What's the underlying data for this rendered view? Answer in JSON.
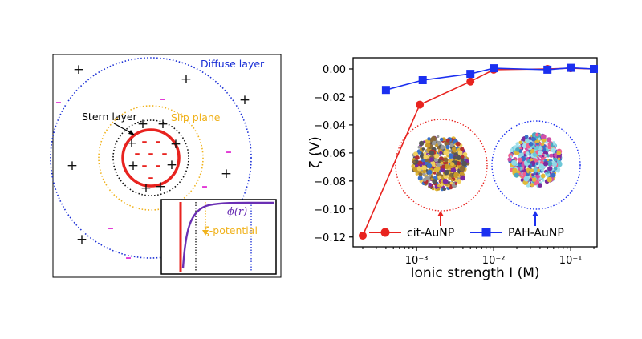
{
  "colors": {
    "frame": "#000000",
    "diffuse": "#1a2fd6",
    "stern": "#111111",
    "slip": "#f0b21c",
    "particle": "#e8231f",
    "cation": "#111111",
    "anion": "#e23ad6",
    "potential": "#6a2fb4",
    "cit": "#e8231f",
    "pah": "#1b2ff0"
  },
  "left_panel": {
    "diffuse_label": "Diffuse layer",
    "stern_label": "Stern layer",
    "slip_label": "Slip plane",
    "zeta_label": "ζ-potential",
    "phi_label": "ϕ(r)",
    "plus_glyph": "+",
    "minus_glyph": "–"
  },
  "chart_data": {
    "type": "line",
    "x_scale": "log",
    "xlim": [
      0.00015,
      0.22
    ],
    "ylim": [
      -0.127,
      0.008
    ],
    "xlabel": "Ionic strength I (M)",
    "ylabel": "ζ (V)",
    "x_ticks": [
      {
        "value": 0.001,
        "label": "10⁻³"
      },
      {
        "value": 0.01,
        "label": "10⁻²"
      },
      {
        "value": 0.1,
        "label": "10⁻¹"
      }
    ],
    "y_ticks": [
      0.0,
      -0.02,
      -0.04,
      -0.06,
      -0.08,
      -0.1,
      -0.12
    ],
    "y_tick_labels": [
      "0.00",
      "−0.02",
      "−0.04",
      "−0.06",
      "−0.08",
      "−0.10",
      "−0.12"
    ],
    "series": [
      {
        "name": "cit-AuNP",
        "marker": "circle",
        "color": "#e8231f",
        "x": [
          0.0002,
          0.0011,
          0.005,
          0.01,
          0.05,
          0.1,
          0.2
        ],
        "y": [
          -0.119,
          -0.0255,
          -0.009,
          -0.0005,
          0.0,
          0.0005,
          0.0
        ]
      },
      {
        "name": "PAH-AuNP",
        "marker": "square",
        "color": "#1b2ff0",
        "x": [
          0.0004,
          0.0012,
          0.005,
          0.01,
          0.05,
          0.1,
          0.2
        ],
        "y": [
          -0.015,
          -0.008,
          -0.0035,
          0.0005,
          -0.0005,
          0.0008,
          0.0
        ]
      }
    ],
    "legend_placement": "bottom"
  }
}
